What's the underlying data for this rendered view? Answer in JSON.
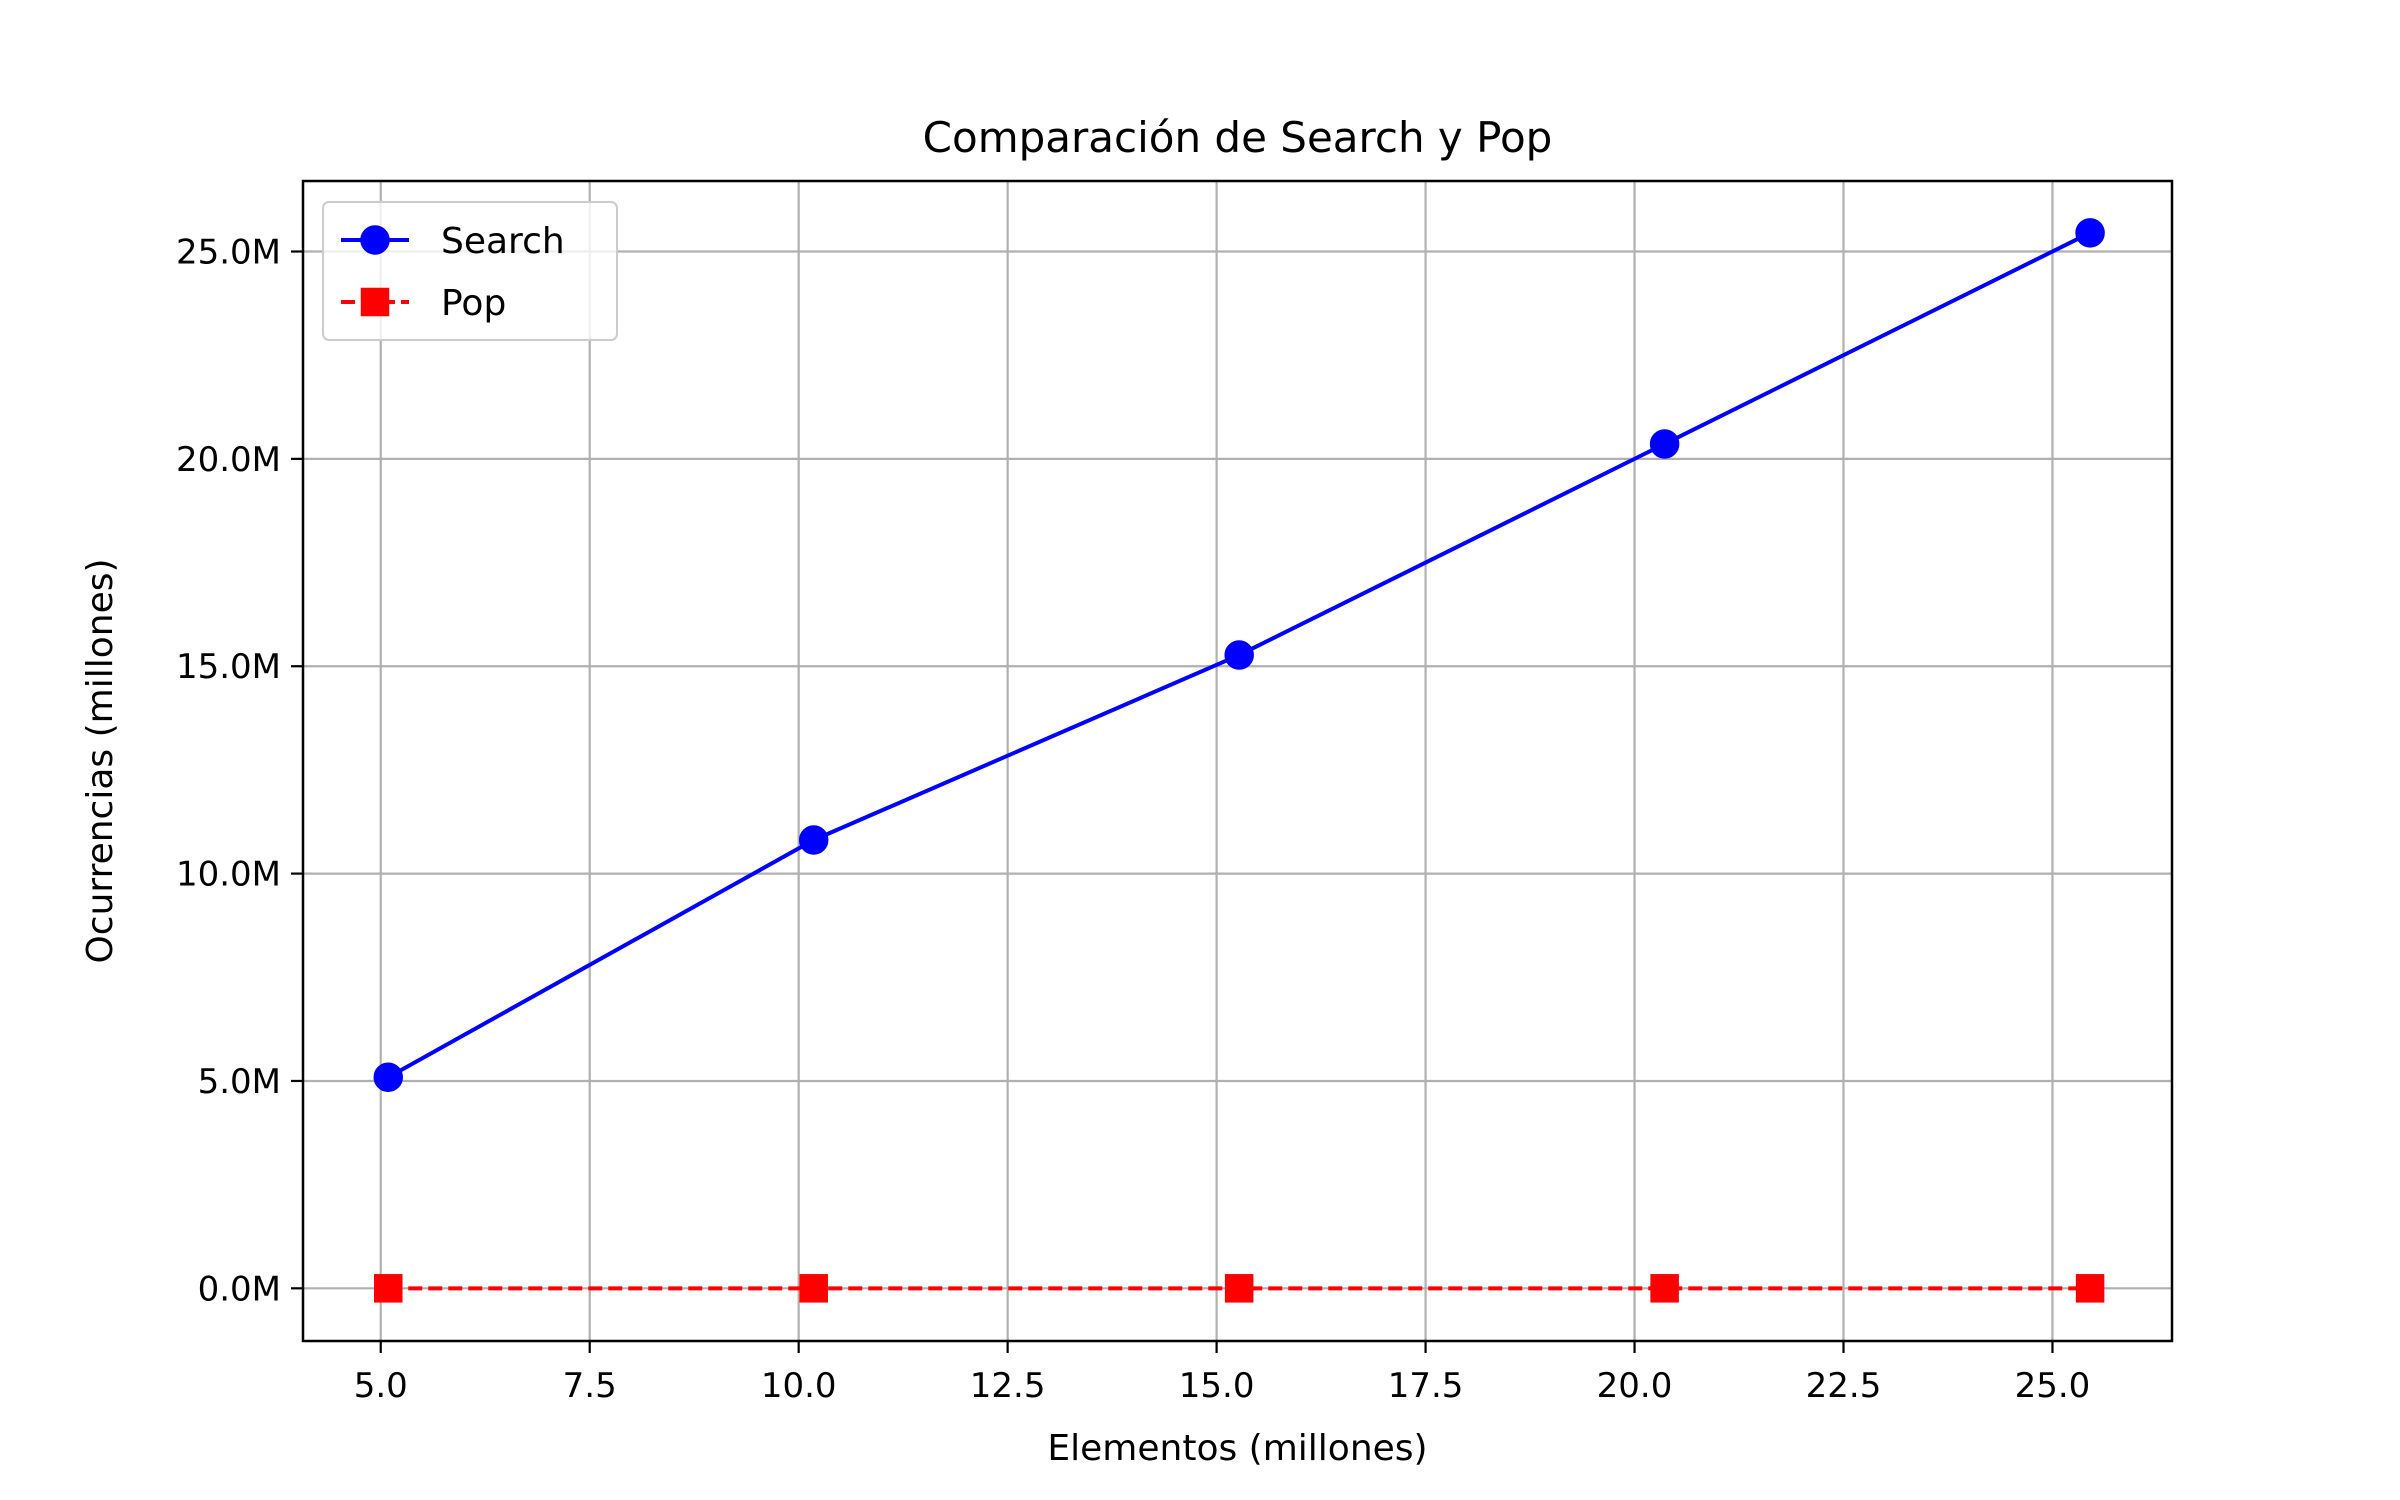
{
  "chart_data": {
    "type": "line",
    "title": "Comparación de Search y Pop",
    "xlabel": "Elementos (millones)",
    "ylabel": "Ocurrencias (millones)",
    "xlim": [
      4.07,
      26.43
    ],
    "ylim": [
      -1.27,
      26.7
    ],
    "xticks": [
      5.0,
      7.5,
      10.0,
      12.5,
      15.0,
      17.5,
      20.0,
      22.5,
      25.0
    ],
    "xtick_labels": [
      "5.0",
      "7.5",
      "10.0",
      "12.5",
      "15.0",
      "17.5",
      "20.0",
      "22.5",
      "25.0"
    ],
    "yticks": [
      0,
      5,
      10,
      15,
      20,
      25
    ],
    "ytick_labels": [
      "0.0M",
      "5.0M",
      "10.0M",
      "15.0M",
      "20.0M",
      "25.0M"
    ],
    "grid": true,
    "legend_position": "upper-left",
    "x": [
      5.09,
      10.18,
      15.27,
      20.36,
      25.45
    ],
    "series": [
      {
        "name": "Search",
        "values": [
          5.09,
          10.81,
          15.27,
          20.36,
          25.45
        ],
        "color": "#0000ff",
        "marker": "circle",
        "linestyle": "solid"
      },
      {
        "name": "Pop",
        "values": [
          0,
          0,
          0,
          0,
          0
        ],
        "color": "#ff0000",
        "marker": "square",
        "linestyle": "dashed"
      }
    ],
    "colors": {
      "grid": "#b0b0b0",
      "axes": "#000000",
      "legend_border": "#cccccc"
    }
  }
}
